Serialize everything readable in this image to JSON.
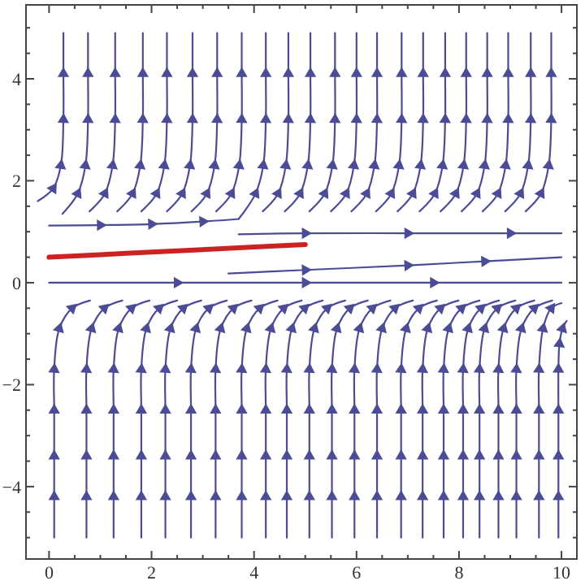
{
  "chart_data": {
    "type": "line",
    "xlim": [
      -0.45,
      10.3
    ],
    "ylim": [
      -5.42,
      5.45
    ],
    "xticks": [
      0,
      {
        "value": 0.5,
        "label": null
      },
      2,
      {
        "value": 1,
        "label": null
      },
      {
        "value": 1.5,
        "label": null
      },
      {
        "value": 2.5,
        "label": null
      },
      {
        "value": 3,
        "label": null
      },
      {
        "value": 3.5,
        "label": null
      },
      4,
      {
        "value": 4.5,
        "label": null
      },
      {
        "value": 5,
        "label": null
      },
      {
        "value": 5.5,
        "label": null
      },
      6,
      {
        "value": 6.5,
        "label": null
      },
      {
        "value": 7,
        "label": null
      },
      {
        "value": 7.5,
        "label": null
      },
      8,
      {
        "value": 8.5,
        "label": null
      },
      {
        "value": 9,
        "label": null
      },
      {
        "value": 9.5,
        "label": null
      },
      10
    ],
    "yticks": [
      -4,
      -2,
      0,
      2,
      4,
      {
        "value": -5,
        "label": null
      },
      {
        "value": -4.5,
        "label": null
      },
      {
        "value": -3.5,
        "label": null
      },
      {
        "value": -3,
        "label": null
      },
      {
        "value": -2.5,
        "label": null
      },
      {
        "value": -1.5,
        "label": null
      },
      {
        "value": -1,
        "label": null
      },
      {
        "value": -0.5,
        "label": null
      },
      {
        "value": 0.5,
        "label": null
      },
      {
        "value": 1,
        "label": null
      },
      {
        "value": 1.5,
        "label": null
      },
      {
        "value": 2.5,
        "label": null
      },
      {
        "value": 3,
        "label": null
      },
      {
        "value": 3.5,
        "label": null
      },
      {
        "value": 4.5,
        "label": null
      },
      {
        "value": 5,
        "label": null
      }
    ],
    "grid": false,
    "marker": "triangle",
    "series": [
      {
        "color": "#4c4c96",
        "x": [
          0,
          2.5,
          5,
          7.5,
          10
        ],
        "values": [
          0,
          0,
          0,
          0,
          0
        ]
      },
      {
        "color": "#4c4c96",
        "x": [
          0,
          1,
          2,
          3,
          3.7
        ],
        "values": [
          1.12,
          1.13,
          1.15,
          1.2,
          1.25
        ]
      },
      {
        "color": "#4c4c96",
        "x": [
          3.7,
          5,
          7,
          9,
          10
        ],
        "values": [
          0.95,
          0.97,
          0.97,
          0.97,
          0.97
        ]
      },
      {
        "color": "#4c4c96",
        "x": [
          3.5,
          5,
          7,
          8.5,
          10
        ],
        "values": [
          0.18,
          0.25,
          0.34,
          0.42,
          0.5
        ]
      },
      {
        "color": "#cc2222",
        "marker": "none",
        "x": [
          0,
          1,
          2,
          3,
          4,
          5
        ],
        "values": [
          0.5,
          0.55,
          0.6,
          0.65,
          0.7,
          0.75
        ]
      },
      {
        "color": "#4c4c96",
        "x": [
          -0.22,
          0.08,
          0.23,
          0.28,
          0.28,
          0.28
        ],
        "values": [
          1.6,
          1.85,
          2.3,
          3.2,
          4.1,
          4.9
        ]
      },
      {
        "color": "#4c4c96",
        "x": [
          0.26,
          0.56,
          0.71,
          0.76,
          0.76,
          0.76
        ],
        "values": [
          1.35,
          1.75,
          2.3,
          3.2,
          4.1,
          4.9
        ]
      },
      {
        "color": "#4c4c96",
        "x": [
          0.79,
          1.09,
          1.24,
          1.29,
          1.29,
          1.29
        ],
        "values": [
          1.4,
          1.75,
          2.3,
          3.2,
          4.1,
          4.9
        ]
      },
      {
        "color": "#4c4c96",
        "x": [
          1.33,
          1.63,
          1.78,
          1.83,
          1.83,
          1.83
        ],
        "values": [
          1.4,
          1.75,
          2.3,
          3.2,
          4.1,
          4.9
        ]
      },
      {
        "color": "#4c4c96",
        "x": [
          1.8,
          2.1,
          2.25,
          2.3,
          2.3,
          2.3
        ],
        "values": [
          1.4,
          1.75,
          2.3,
          3.2,
          4.1,
          4.9
        ]
      },
      {
        "color": "#4c4c96",
        "x": [
          2.3,
          2.6,
          2.75,
          2.8,
          2.8,
          2.8
        ],
        "values": [
          1.4,
          1.75,
          2.3,
          3.2,
          4.1,
          4.9
        ]
      },
      {
        "color": "#4c4c96",
        "x": [
          2.78,
          3.08,
          3.23,
          3.28,
          3.28,
          3.28
        ],
        "values": [
          1.4,
          1.75,
          2.3,
          3.2,
          4.1,
          4.9
        ]
      },
      {
        "color": "#4c4c96",
        "x": [
          3.26,
          3.56,
          3.71,
          3.76,
          3.76,
          3.76
        ],
        "values": [
          1.4,
          1.75,
          2.3,
          3.2,
          4.1,
          4.9
        ]
      },
      {
        "color": "#4c4c96",
        "x": [
          3.7,
          4.03,
          4.18,
          4.23,
          4.23,
          4.23
        ],
        "values": [
          1.25,
          1.75,
          2.3,
          3.2,
          4.1,
          4.9
        ]
      },
      {
        "color": "#4c4c96",
        "x": [
          4.17,
          4.47,
          4.62,
          4.67,
          4.67,
          4.67
        ],
        "values": [
          1.4,
          1.75,
          2.3,
          3.2,
          4.1,
          4.9
        ]
      },
      {
        "color": "#4c4c96",
        "x": [
          4.6,
          4.9,
          5.05,
          5.1,
          5.1,
          5.1
        ],
        "values": [
          1.4,
          1.75,
          2.3,
          3.2,
          4.1,
          4.9
        ]
      },
      {
        "color": "#4c4c96",
        "x": [
          5.08,
          5.38,
          5.53,
          5.58,
          5.58,
          5.58
        ],
        "values": [
          1.4,
          1.75,
          2.3,
          3.2,
          4.1,
          4.9
        ]
      },
      {
        "color": "#4c4c96",
        "x": [
          5.5,
          5.8,
          5.95,
          6,
          6,
          6
        ],
        "values": [
          1.4,
          1.75,
          2.3,
          3.2,
          4.1,
          4.9
        ]
      },
      {
        "color": "#4c4c96",
        "x": [
          5.9,
          6.2,
          6.35,
          6.4,
          6.4,
          6.4
        ],
        "values": [
          1.4,
          1.75,
          2.3,
          3.2,
          4.1,
          4.9
        ]
      },
      {
        "color": "#4c4c96",
        "x": [
          6.38,
          6.68,
          6.83,
          6.88,
          6.88,
          6.88
        ],
        "values": [
          1.4,
          1.75,
          2.3,
          3.2,
          4.1,
          4.9
        ]
      },
      {
        "color": "#4c4c96",
        "x": [
          6.8,
          7.1,
          7.25,
          7.3,
          7.3,
          7.3
        ],
        "values": [
          1.4,
          1.75,
          2.3,
          3.2,
          4.1,
          4.9
        ]
      },
      {
        "color": "#4c4c96",
        "x": [
          7.23,
          7.53,
          7.68,
          7.73,
          7.73,
          7.73
        ],
        "values": [
          1.4,
          1.75,
          2.3,
          3.2,
          4.1,
          4.9
        ]
      },
      {
        "color": "#4c4c96",
        "x": [
          7.64,
          7.94,
          8.09,
          8.14,
          8.14,
          8.14
        ],
        "values": [
          1.4,
          1.75,
          2.3,
          3.2,
          4.1,
          4.9
        ]
      },
      {
        "color": "#4c4c96",
        "x": [
          8.05,
          8.35,
          8.5,
          8.55,
          8.55,
          8.55
        ],
        "values": [
          1.4,
          1.75,
          2.3,
          3.2,
          4.1,
          4.9
        ]
      },
      {
        "color": "#4c4c96",
        "x": [
          8.46,
          8.76,
          8.91,
          8.96,
          8.96,
          8.96
        ],
        "values": [
          1.4,
          1.75,
          2.3,
          3.2,
          4.1,
          4.9
        ]
      },
      {
        "color": "#4c4c96",
        "x": [
          8.9,
          9.2,
          9.35,
          9.4,
          9.4,
          9.4
        ],
        "values": [
          1.4,
          1.75,
          2.3,
          3.2,
          4.1,
          4.9
        ]
      },
      {
        "color": "#4c4c96",
        "x": [
          9.3,
          9.6,
          9.75,
          9.8,
          9.8,
          9.8
        ],
        "values": [
          1.4,
          1.75,
          2.3,
          3.2,
          4.1,
          4.9
        ]
      },
      {
        "color": "#4c4c96",
        "x": [
          0.1,
          0.1,
          0.1,
          0.1,
          0.1,
          0.2,
          0.45,
          0.8
        ],
        "values": [
          -5,
          -4.2,
          -3.4,
          -2.5,
          -1.7,
          -0.9,
          -0.5,
          -0.35
        ]
      },
      {
        "color": "#4c4c96",
        "x": [
          0.73,
          0.73,
          0.73,
          0.73,
          0.73,
          0.83,
          1.08,
          1.43
        ],
        "values": [
          -5,
          -4.2,
          -3.4,
          -2.5,
          -1.7,
          -0.9,
          -0.5,
          -0.35
        ]
      },
      {
        "color": "#4c4c96",
        "x": [
          1.26,
          1.26,
          1.26,
          1.26,
          1.26,
          1.36,
          1.61,
          1.96
        ],
        "values": [
          -5,
          -4.2,
          -3.4,
          -2.5,
          -1.7,
          -0.9,
          -0.5,
          -0.35
        ]
      },
      {
        "color": "#4c4c96",
        "x": [
          1.8,
          1.8,
          1.8,
          1.8,
          1.8,
          1.9,
          2.15,
          2.5
        ],
        "values": [
          -5,
          -4.2,
          -3.4,
          -2.5,
          -1.7,
          -0.9,
          -0.5,
          -0.35
        ]
      },
      {
        "color": "#4c4c96",
        "x": [
          2.27,
          2.27,
          2.27,
          2.27,
          2.27,
          2.37,
          2.62,
          2.97
        ],
        "values": [
          -5,
          -4.2,
          -3.4,
          -2.5,
          -1.7,
          -0.9,
          -0.5,
          -0.35
        ]
      },
      {
        "color": "#4c4c96",
        "x": [
          2.77,
          2.77,
          2.77,
          2.77,
          2.77,
          2.87,
          3.12,
          3.47
        ],
        "values": [
          -5,
          -4.2,
          -3.4,
          -2.5,
          -1.7,
          -0.9,
          -0.5,
          -0.35
        ]
      },
      {
        "color": "#4c4c96",
        "x": [
          3.25,
          3.25,
          3.25,
          3.25,
          3.25,
          3.35,
          3.6,
          3.95
        ],
        "values": [
          -5,
          -4.2,
          -3.4,
          -2.5,
          -1.7,
          -0.9,
          -0.5,
          -0.35
        ]
      },
      {
        "color": "#4c4c96",
        "x": [
          3.76,
          3.76,
          3.76,
          3.76,
          3.76,
          3.86,
          4.11,
          4.46
        ],
        "values": [
          -5,
          -4.2,
          -3.4,
          -2.5,
          -1.7,
          -0.9,
          -0.5,
          -0.35
        ]
      },
      {
        "color": "#4c4c96",
        "x": [
          4.23,
          4.23,
          4.23,
          4.23,
          4.23,
          4.33,
          4.58,
          4.93
        ],
        "values": [
          -5,
          -4.2,
          -3.4,
          -2.5,
          -1.7,
          -0.9,
          -0.5,
          -0.35
        ]
      },
      {
        "color": "#4c4c96",
        "x": [
          4.64,
          4.64,
          4.64,
          4.64,
          4.64,
          4.74,
          4.99,
          5.34
        ],
        "values": [
          -5,
          -4.2,
          -3.4,
          -2.5,
          -1.7,
          -0.9,
          -0.5,
          -0.35
        ]
      },
      {
        "color": "#4c4c96",
        "x": [
          5.08,
          5.08,
          5.08,
          5.08,
          5.08,
          5.18,
          5.43,
          5.78
        ],
        "values": [
          -5,
          -4.2,
          -3.4,
          -2.5,
          -1.7,
          -0.9,
          -0.5,
          -0.35
        ]
      },
      {
        "color": "#4c4c96",
        "x": [
          5.52,
          5.52,
          5.52,
          5.52,
          5.52,
          5.62,
          5.87,
          6.22
        ],
        "values": [
          -5,
          -4.2,
          -3.4,
          -2.5,
          -1.7,
          -0.9,
          -0.5,
          -0.35
        ]
      },
      {
        "color": "#4c4c96",
        "x": [
          5.96,
          5.96,
          5.96,
          5.96,
          5.96,
          6.06,
          6.31,
          6.66
        ],
        "values": [
          -5,
          -4.2,
          -3.4,
          -2.5,
          -1.7,
          -0.9,
          -0.5,
          -0.35
        ]
      },
      {
        "color": "#4c4c96",
        "x": [
          6.4,
          6.4,
          6.4,
          6.4,
          6.4,
          6.5,
          6.75,
          7.1
        ],
        "values": [
          -5,
          -4.2,
          -3.4,
          -2.5,
          -1.7,
          -0.9,
          -0.5,
          -0.35
        ]
      },
      {
        "color": "#4c4c96",
        "x": [
          6.87,
          6.87,
          6.87,
          6.87,
          6.87,
          6.97,
          7.22,
          7.57
        ],
        "values": [
          -5,
          -4.2,
          -3.4,
          -2.5,
          -1.7,
          -0.9,
          -0.5,
          -0.35
        ]
      },
      {
        "color": "#4c4c96",
        "x": [
          7.29,
          7.29,
          7.29,
          7.29,
          7.29,
          7.39,
          7.64,
          7.99
        ],
        "values": [
          -5,
          -4.2,
          -3.4,
          -2.5,
          -1.7,
          -0.9,
          -0.5,
          -0.35
        ]
      },
      {
        "color": "#4c4c96",
        "x": [
          7.7,
          7.7,
          7.7,
          7.7,
          7.7,
          7.8,
          8.05,
          8.4
        ],
        "values": [
          -5,
          -4.2,
          -3.4,
          -2.5,
          -1.7,
          -0.9,
          -0.5,
          -0.35
        ]
      },
      {
        "color": "#4c4c96",
        "x": [
          8.08,
          8.08,
          8.08,
          8.08,
          8.08,
          8.18,
          8.43,
          8.78
        ],
        "values": [
          -5,
          -4.2,
          -3.4,
          -2.5,
          -1.7,
          -0.9,
          -0.5,
          -0.35
        ]
      },
      {
        "color": "#4c4c96",
        "x": [
          8.4,
          8.4,
          8.4,
          8.4,
          8.4,
          8.5,
          8.75,
          9.1
        ],
        "values": [
          -5,
          -4.2,
          -3.4,
          -2.5,
          -1.7,
          -0.9,
          -0.5,
          -0.35
        ]
      },
      {
        "color": "#4c4c96",
        "x": [
          8.77,
          8.77,
          8.77,
          8.77,
          8.77,
          8.87,
          9.12,
          9.47
        ],
        "values": [
          -5,
          -4.2,
          -3.4,
          -2.5,
          -1.7,
          -0.9,
          -0.5,
          -0.35
        ]
      },
      {
        "color": "#4c4c96",
        "x": [
          9.12,
          9.12,
          9.12,
          9.12,
          9.12,
          9.22,
          9.47,
          9.82
        ],
        "values": [
          -5,
          -4.2,
          -3.4,
          -2.5,
          -1.7,
          -0.9,
          -0.5,
          -0.35
        ]
      },
      {
        "color": "#4c4c96",
        "x": [
          9.56,
          9.56,
          9.56,
          9.56,
          9.56,
          9.64,
          9.8,
          10
        ],
        "values": [
          -5,
          -4.2,
          -3.4,
          -2.5,
          -1.7,
          -0.9,
          -0.5,
          -0.4
        ]
      },
      {
        "color": "#4c4c96",
        "x": [
          9.94,
          9.94,
          9.94,
          9.94,
          9.94,
          9.96,
          10.02,
          10.1
        ],
        "values": [
          -5,
          -4.2,
          -3.4,
          -2.5,
          -1.7,
          -1.2,
          -0.9,
          -0.75
        ]
      }
    ]
  }
}
